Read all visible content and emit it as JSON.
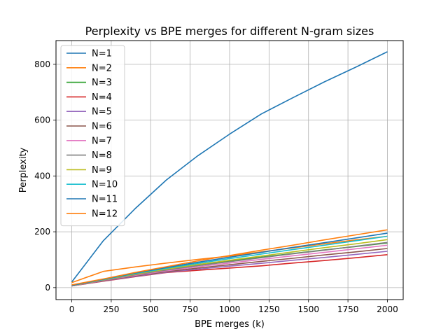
{
  "chart_data": {
    "type": "line",
    "title": "Perplexity vs BPE merges for different N-gram sizes",
    "xlabel": "BPE merges (k)",
    "ylabel": "Perplexity",
    "xlim": [
      -100,
      2100
    ],
    "ylim": [
      -43,
      885
    ],
    "xticks": [
      0,
      250,
      500,
      750,
      1000,
      1250,
      1500,
      1750,
      2000
    ],
    "yticks": [
      0,
      200,
      400,
      600,
      800
    ],
    "grid": true,
    "legend_position": "top-left",
    "x": [
      0,
      200,
      400,
      600,
      800,
      1000,
      1200,
      1400,
      1600,
      1800,
      2000
    ],
    "series": [
      {
        "name": "N=1",
        "color": "#1f77b4",
        "values": [
          20,
          168,
          282,
          386,
          473,
          550,
          622,
          680,
          737,
          790,
          845
        ]
      },
      {
        "name": "N=2",
        "color": "#ff7f0e",
        "values": [
          18,
          58,
          74,
          88,
          101,
          113,
          128,
          142,
          157,
          171,
          184
        ]
      },
      {
        "name": "N=3",
        "color": "#2ca02c",
        "values": [
          8,
          30,
          49,
          66,
          82,
          96,
          109,
          122,
          135,
          147,
          160
        ]
      },
      {
        "name": "N=4",
        "color": "#d62728",
        "values": [
          6,
          23,
          39,
          54,
          62,
          70,
          78,
          88,
          97,
          107,
          118
        ]
      },
      {
        "name": "N=5",
        "color": "#9467bd",
        "values": [
          6,
          24,
          40,
          55,
          66,
          77,
          87,
          98,
          108,
          119,
          130
        ]
      },
      {
        "name": "N=6",
        "color": "#8c564b",
        "values": [
          6,
          25,
          42,
          57,
          70,
          82,
          94,
          105,
          117,
          128,
          140
        ]
      },
      {
        "name": "N=7",
        "color": "#e377c2",
        "values": [
          6,
          26,
          44,
          60,
          75,
          88,
          101,
          114,
          126,
          139,
          152
        ]
      },
      {
        "name": "N=8",
        "color": "#7f7f7f",
        "values": [
          7,
          27,
          46,
          63,
          79,
          93,
          107,
          121,
          134,
          148,
          162
        ]
      },
      {
        "name": "N=9",
        "color": "#bcbd22",
        "values": [
          7,
          28,
          48,
          66,
          83,
          98,
          113,
          128,
          143,
          157,
          172
        ]
      },
      {
        "name": "N=10",
        "color": "#17becf",
        "values": [
          8,
          29,
          50,
          69,
          87,
          104,
          120,
          136,
          152,
          168,
          184
        ]
      },
      {
        "name": "N=11",
        "color": "#1f77b4",
        "values": [
          8,
          30,
          52,
          72,
          91,
          109,
          126,
          144,
          161,
          178,
          195
        ]
      },
      {
        "name": "N=12",
        "color": "#ff7f0e",
        "values": [
          10,
          31,
          54,
          75,
          96,
          115,
          134,
          152,
          171,
          189,
          207
        ]
      }
    ]
  }
}
